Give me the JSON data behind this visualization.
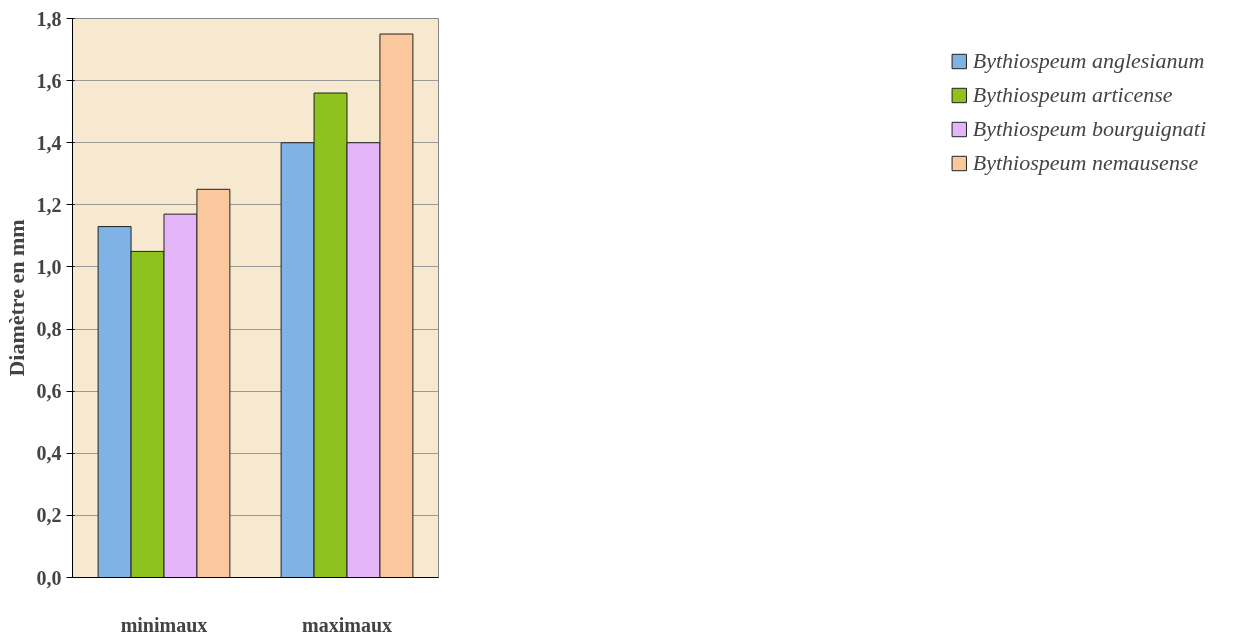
{
  "chart_data": {
    "type": "bar",
    "ylabel": "Diamètre en mm",
    "categories": [
      "minimaux",
      "maximaux"
    ],
    "series": [
      {
        "name": "Bythiospeum anglesianum",
        "color": "#7fb2e5",
        "values": [
          1.13,
          1.4
        ]
      },
      {
        "name": "Bythiospeum articense",
        "color": "#8dc21f",
        "values": [
          1.05,
          1.56
        ]
      },
      {
        "name": "Bythiospeum bourguignati",
        "color": "#e5b5f9",
        "values": [
          1.17,
          1.4
        ]
      },
      {
        "name": "Bythiospeum nemausense",
        "color": "#fbc89e",
        "values": [
          1.25,
          1.75
        ]
      }
    ],
    "ylim": [
      0,
      1.8
    ],
    "yticks": [
      {
        "value": 0,
        "label": "0,0"
      },
      {
        "value": 0.2,
        "label": "0,2"
      },
      {
        "value": 0.4,
        "label": "0,4"
      },
      {
        "value": 0.6,
        "label": "0,6"
      },
      {
        "value": 0.8,
        "label": "0,8"
      },
      {
        "value": 1.0,
        "label": "1,0"
      },
      {
        "value": 1.2,
        "label": "1,2"
      },
      {
        "value": 1.4,
        "label": "1,4"
      },
      {
        "value": 1.6,
        "label": "1,6"
      },
      {
        "value": 1.8,
        "label": "1,8"
      }
    ],
    "grid": "y",
    "legend": "right"
  }
}
